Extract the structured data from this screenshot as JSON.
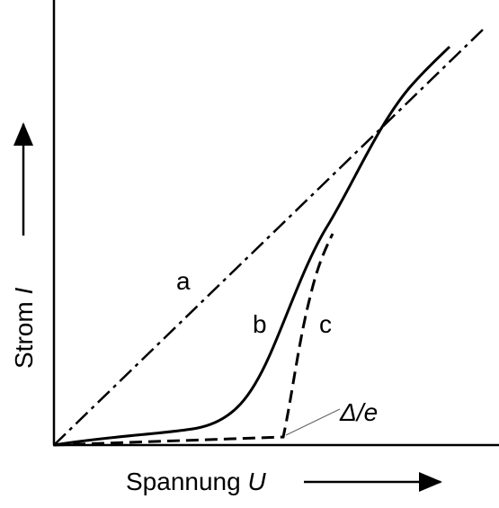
{
  "y_axis": {
    "label": "Strom",
    "symbol": "I"
  },
  "x_axis": {
    "label": "Spannung",
    "symbol": "U"
  },
  "curves": [
    {
      "label": "a"
    },
    {
      "label": "b"
    },
    {
      "label": "c"
    }
  ],
  "annotation": "Δ/e"
}
